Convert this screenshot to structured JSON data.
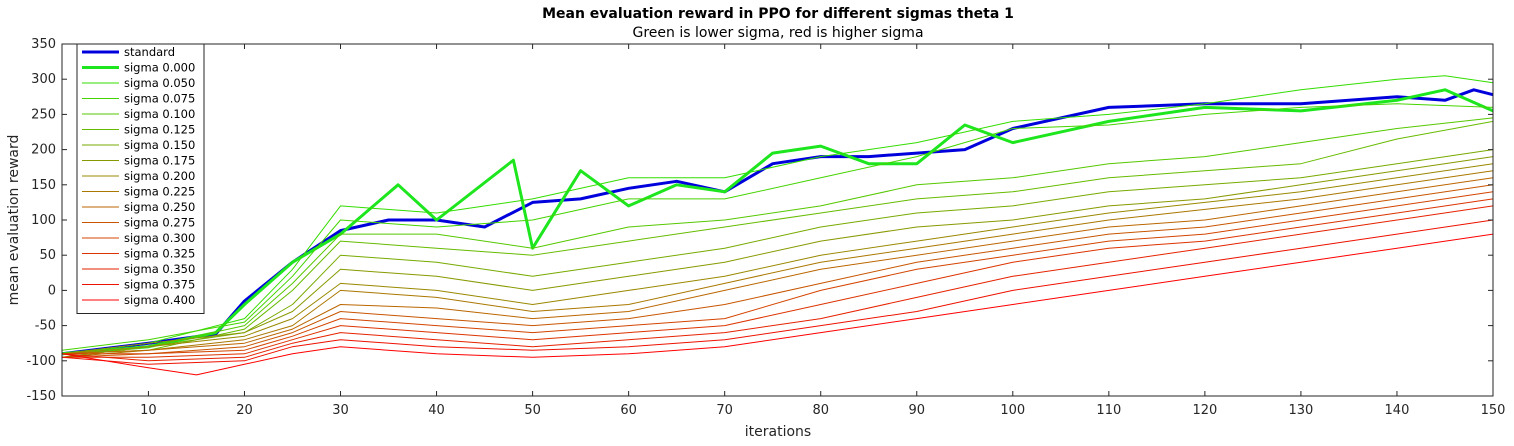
{
  "chart_data": {
    "type": "line",
    "title": "Mean evaluation reward in PPO for different sigmas theta 1",
    "subtitle": "Green is lower sigma, red is higher sigma",
    "xlabel": "iterations",
    "ylabel": "mean evaluation reward",
    "xlim": [
      1,
      150
    ],
    "ylim": [
      -150,
      350
    ],
    "xticks": [
      10,
      20,
      30,
      40,
      50,
      60,
      70,
      80,
      90,
      100,
      110,
      120,
      130,
      140,
      150
    ],
    "yticks": [
      -150,
      -100,
      -50,
      0,
      50,
      100,
      150,
      200,
      250,
      300,
      350
    ],
    "grid": false,
    "legend_position": "top-left",
    "series": [
      {
        "name": "standard",
        "color": "#0000dd",
        "width": 3,
        "x": [
          1,
          10,
          17,
          20,
          25,
          30,
          35,
          40,
          45,
          50,
          55,
          60,
          65,
          70,
          75,
          80,
          85,
          90,
          95,
          100,
          110,
          120,
          130,
          140,
          145,
          148,
          150
        ],
        "y": [
          -90,
          -75,
          -62,
          -15,
          40,
          85,
          100,
          100,
          90,
          125,
          130,
          145,
          155,
          140,
          180,
          190,
          190,
          195,
          200,
          230,
          260,
          265,
          265,
          275,
          270,
          285,
          278
        ]
      },
      {
        "name": "sigma 0.000",
        "color": "#1ee61e",
        "width": 3,
        "x": [
          1,
          10,
          17,
          20,
          25,
          30,
          36,
          40,
          48,
          50,
          55,
          60,
          65,
          70,
          75,
          80,
          85,
          90,
          95,
          100,
          110,
          120,
          130,
          140,
          145,
          150
        ],
        "y": [
          -90,
          -80,
          -60,
          -20,
          40,
          80,
          150,
          100,
          185,
          60,
          170,
          120,
          150,
          140,
          195,
          205,
          180,
          180,
          235,
          210,
          240,
          260,
          255,
          270,
          285,
          255
        ]
      },
      {
        "name": "sigma 0.050",
        "color": "#33dd00",
        "width": 1,
        "x": [
          1,
          10,
          20,
          25,
          30,
          40,
          50,
          60,
          70,
          80,
          90,
          100,
          110,
          120,
          130,
          140,
          145,
          150
        ],
        "y": [
          -90,
          -75,
          -40,
          30,
          120,
          110,
          130,
          160,
          160,
          190,
          210,
          240,
          250,
          265,
          285,
          300,
          305,
          295
        ]
      },
      {
        "name": "sigma 0.075",
        "color": "#44d400",
        "width": 1,
        "x": [
          1,
          10,
          20,
          25,
          30,
          40,
          50,
          60,
          70,
          80,
          90,
          100,
          110,
          120,
          130,
          140,
          150
        ],
        "y": [
          -85,
          -70,
          -45,
          20,
          100,
          90,
          100,
          130,
          130,
          160,
          190,
          230,
          235,
          250,
          260,
          265,
          260
        ]
      },
      {
        "name": "sigma 0.100",
        "color": "#55c800",
        "width": 1,
        "x": [
          1,
          10,
          20,
          25,
          30,
          40,
          50,
          60,
          70,
          80,
          90,
          100,
          110,
          120,
          130,
          140,
          150
        ],
        "y": [
          -95,
          -80,
          -50,
          10,
          80,
          80,
          60,
          90,
          100,
          120,
          150,
          160,
          180,
          190,
          210,
          230,
          245
        ]
      },
      {
        "name": "sigma 0.125",
        "color": "#66bb00",
        "width": 1,
        "x": [
          1,
          10,
          20,
          25,
          30,
          40,
          50,
          60,
          70,
          80,
          90,
          100,
          110,
          120,
          130,
          140,
          150
        ],
        "y": [
          -90,
          -85,
          -55,
          0,
          70,
          60,
          50,
          70,
          90,
          110,
          130,
          140,
          160,
          170,
          180,
          215,
          240
        ]
      },
      {
        "name": "sigma 0.150",
        "color": "#77aa00",
        "width": 1,
        "x": [
          1,
          10,
          20,
          25,
          30,
          40,
          50,
          60,
          70,
          80,
          90,
          100,
          110,
          120,
          130,
          140,
          150
        ],
        "y": [
          -95,
          -80,
          -60,
          -20,
          50,
          40,
          20,
          40,
          60,
          90,
          110,
          120,
          140,
          150,
          160,
          180,
          200
        ]
      },
      {
        "name": "sigma 0.175",
        "color": "#889900",
        "width": 1,
        "x": [
          1,
          10,
          20,
          25,
          30,
          40,
          50,
          60,
          70,
          80,
          90,
          100,
          110,
          120,
          130,
          140,
          150
        ],
        "y": [
          -90,
          -75,
          -60,
          -30,
          30,
          20,
          0,
          20,
          40,
          70,
          90,
          100,
          120,
          130,
          150,
          170,
          190
        ]
      },
      {
        "name": "sigma 0.200",
        "color": "#998800",
        "width": 1,
        "x": [
          1,
          10,
          20,
          25,
          30,
          40,
          50,
          60,
          70,
          80,
          90,
          100,
          110,
          120,
          130,
          140,
          150
        ],
        "y": [
          -90,
          -80,
          -65,
          -40,
          10,
          0,
          -20,
          0,
          20,
          50,
          70,
          90,
          110,
          125,
          140,
          160,
          180
        ]
      },
      {
        "name": "sigma 0.225",
        "color": "#aa7700",
        "width": 1,
        "x": [
          1,
          10,
          20,
          25,
          30,
          40,
          50,
          60,
          70,
          80,
          90,
          100,
          110,
          120,
          130,
          140,
          150
        ],
        "y": [
          -95,
          -85,
          -70,
          -50,
          0,
          -10,
          -30,
          -20,
          10,
          40,
          60,
          80,
          100,
          115,
          130,
          150,
          170
        ]
      },
      {
        "name": "sigma 0.250",
        "color": "#bb6600",
        "width": 1,
        "x": [
          1,
          10,
          20,
          25,
          30,
          40,
          50,
          60,
          70,
          80,
          90,
          100,
          110,
          120,
          130,
          140,
          150
        ],
        "y": [
          -90,
          -85,
          -75,
          -55,
          -20,
          -25,
          -40,
          -30,
          0,
          30,
          50,
          70,
          90,
          100,
          120,
          140,
          160
        ]
      },
      {
        "name": "sigma 0.275",
        "color": "#c85500",
        "width": 1,
        "x": [
          1,
          10,
          20,
          25,
          30,
          40,
          50,
          60,
          70,
          80,
          90,
          100,
          110,
          120,
          130,
          140,
          150
        ],
        "y": [
          -95,
          -90,
          -80,
          -60,
          -30,
          -40,
          -50,
          -40,
          -20,
          10,
          40,
          60,
          80,
          90,
          110,
          130,
          150
        ]
      },
      {
        "name": "sigma 0.300",
        "color": "#d44400",
        "width": 1,
        "x": [
          1,
          10,
          20,
          25,
          30,
          40,
          50,
          60,
          70,
          80,
          90,
          100,
          110,
          120,
          130,
          140,
          150
        ],
        "y": [
          -90,
          -90,
          -85,
          -65,
          -40,
          -50,
          -60,
          -50,
          -40,
          0,
          30,
          50,
          70,
          80,
          100,
          120,
          140
        ]
      },
      {
        "name": "sigma 0.325",
        "color": "#dd3300",
        "width": 1,
        "x": [
          1,
          10,
          20,
          25,
          30,
          40,
          50,
          60,
          70,
          80,
          90,
          100,
          110,
          120,
          130,
          140,
          150
        ],
        "y": [
          -95,
          -95,
          -90,
          -70,
          -50,
          -60,
          -70,
          -60,
          -50,
          -20,
          10,
          40,
          60,
          70,
          90,
          110,
          130
        ]
      },
      {
        "name": "sigma 0.350",
        "color": "#e62200",
        "width": 1,
        "x": [
          1,
          10,
          20,
          25,
          30,
          40,
          50,
          60,
          70,
          80,
          90,
          100,
          110,
          120,
          130,
          140,
          150
        ],
        "y": [
          -90,
          -100,
          -95,
          -75,
          -60,
          -70,
          -80,
          -70,
          -60,
          -40,
          -10,
          20,
          40,
          60,
          80,
          100,
          120
        ]
      },
      {
        "name": "sigma 0.375",
        "color": "#ee1100",
        "width": 1,
        "x": [
          1,
          10,
          20,
          25,
          30,
          40,
          50,
          60,
          70,
          80,
          90,
          100,
          110,
          120,
          130,
          140,
          150
        ],
        "y": [
          -95,
          -105,
          -100,
          -80,
          -70,
          -80,
          -85,
          -80,
          -70,
          -50,
          -30,
          0,
          20,
          40,
          60,
          80,
          100
        ]
      },
      {
        "name": "sigma 0.400",
        "color": "#ff0000",
        "width": 1,
        "x": [
          1,
          10,
          15,
          20,
          25,
          30,
          40,
          50,
          60,
          70,
          80,
          90,
          100,
          110,
          120,
          130,
          140,
          150
        ],
        "y": [
          -90,
          -110,
          -120,
          -105,
          -90,
          -80,
          -90,
          -95,
          -90,
          -80,
          -60,
          -40,
          -20,
          0,
          20,
          40,
          60,
          80
        ]
      }
    ]
  }
}
